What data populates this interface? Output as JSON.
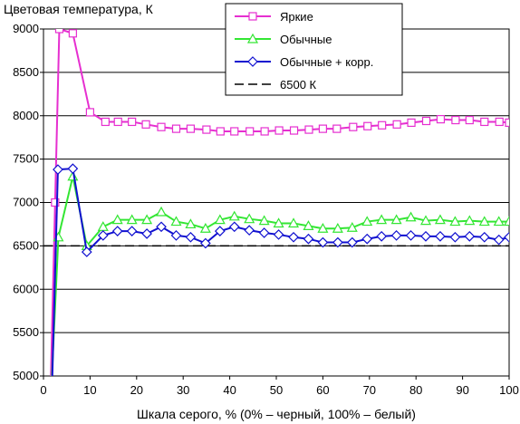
{
  "chart_data": {
    "type": "line",
    "title": "",
    "ylabel": "Цветовая температура, К",
    "xlabel": "Шкала серого, % (0% – черный, 100% – белый)",
    "xlim": [
      0,
      100
    ],
    "ylim": [
      5000,
      9000
    ],
    "xticks": [
      0,
      10,
      20,
      30,
      40,
      50,
      60,
      70,
      80,
      90,
      100
    ],
    "yticks": [
      5000,
      5500,
      6000,
      6500,
      7000,
      7500,
      8000,
      8500,
      9000
    ],
    "grid": "horizontal",
    "legend_position": "top-center",
    "series": [
      {
        "name": "Яркие",
        "color": "#e62fd0",
        "marker": "square",
        "points": [
          [
            1.6,
            5000
          ],
          [
            2.5,
            7000
          ],
          [
            3.4,
            9000
          ],
          [
            6.3,
            8950
          ],
          [
            10,
            8040
          ],
          [
            13.3,
            7930
          ],
          [
            16,
            7930
          ],
          [
            19,
            7930
          ],
          [
            22,
            7900
          ],
          [
            25.3,
            7870
          ],
          [
            28.5,
            7850
          ],
          [
            31.6,
            7850
          ],
          [
            35,
            7840
          ],
          [
            38,
            7820
          ],
          [
            41,
            7820
          ],
          [
            44.3,
            7820
          ],
          [
            47.5,
            7820
          ],
          [
            50.6,
            7830
          ],
          [
            53.8,
            7830
          ],
          [
            57,
            7840
          ],
          [
            60,
            7850
          ],
          [
            63,
            7850
          ],
          [
            66.5,
            7870
          ],
          [
            69.6,
            7880
          ],
          [
            72.7,
            7890
          ],
          [
            75.9,
            7900
          ],
          [
            79,
            7920
          ],
          [
            82.2,
            7940
          ],
          [
            85.3,
            7960
          ],
          [
            88.5,
            7950
          ],
          [
            91.5,
            7950
          ],
          [
            94.7,
            7930
          ],
          [
            97.9,
            7930
          ],
          [
            100,
            7920
          ]
        ]
      },
      {
        "name": "Обычные",
        "color": "#33e633",
        "marker": "triangle",
        "points": [
          [
            1.8,
            5000
          ],
          [
            3.2,
            6600
          ],
          [
            6.3,
            7300
          ],
          [
            9.3,
            6500
          ],
          [
            12.8,
            6720
          ],
          [
            15.9,
            6800
          ],
          [
            19,
            6800
          ],
          [
            22.2,
            6800
          ],
          [
            25.3,
            6890
          ],
          [
            28.5,
            6780
          ],
          [
            31.6,
            6750
          ],
          [
            34.8,
            6700
          ],
          [
            37.9,
            6800
          ],
          [
            41,
            6840
          ],
          [
            44.2,
            6810
          ],
          [
            47.4,
            6790
          ],
          [
            50.5,
            6760
          ],
          [
            53.7,
            6760
          ],
          [
            56.9,
            6730
          ],
          [
            60,
            6700
          ],
          [
            63.2,
            6700
          ],
          [
            66.3,
            6710
          ],
          [
            69.5,
            6780
          ],
          [
            72.6,
            6800
          ],
          [
            75.8,
            6800
          ],
          [
            78.9,
            6830
          ],
          [
            82.1,
            6790
          ],
          [
            85.2,
            6800
          ],
          [
            88.4,
            6780
          ],
          [
            91.5,
            6790
          ],
          [
            94.7,
            6780
          ],
          [
            97.8,
            6780
          ],
          [
            100,
            6780
          ]
        ]
      },
      {
        "name": "Обычные + корр.",
        "color": "#1010d0",
        "marker": "diamond",
        "points": [
          [
            1.9,
            5000
          ],
          [
            3.1,
            7380
          ],
          [
            6.3,
            7390
          ],
          [
            9.3,
            6430
          ],
          [
            12.8,
            6620
          ],
          [
            15.9,
            6670
          ],
          [
            19,
            6670
          ],
          [
            22.2,
            6640
          ],
          [
            25.3,
            6720
          ],
          [
            28.5,
            6620
          ],
          [
            31.6,
            6600
          ],
          [
            34.8,
            6530
          ],
          [
            37.9,
            6670
          ],
          [
            41,
            6720
          ],
          [
            44.2,
            6680
          ],
          [
            47.4,
            6650
          ],
          [
            50.5,
            6630
          ],
          [
            53.7,
            6600
          ],
          [
            56.9,
            6580
          ],
          [
            60,
            6540
          ],
          [
            63.2,
            6540
          ],
          [
            66.3,
            6540
          ],
          [
            69.5,
            6580
          ],
          [
            72.6,
            6610
          ],
          [
            75.8,
            6620
          ],
          [
            78.9,
            6620
          ],
          [
            82.1,
            6610
          ],
          [
            85.2,
            6610
          ],
          [
            88.4,
            6600
          ],
          [
            91.5,
            6610
          ],
          [
            94.7,
            6600
          ],
          [
            97.8,
            6570
          ],
          [
            100,
            6600
          ]
        ]
      },
      {
        "name": "6500 К",
        "color": "#000000",
        "marker": "none",
        "dashed": true,
        "points": [
          [
            0,
            6500
          ],
          [
            100,
            6500
          ]
        ]
      }
    ]
  }
}
